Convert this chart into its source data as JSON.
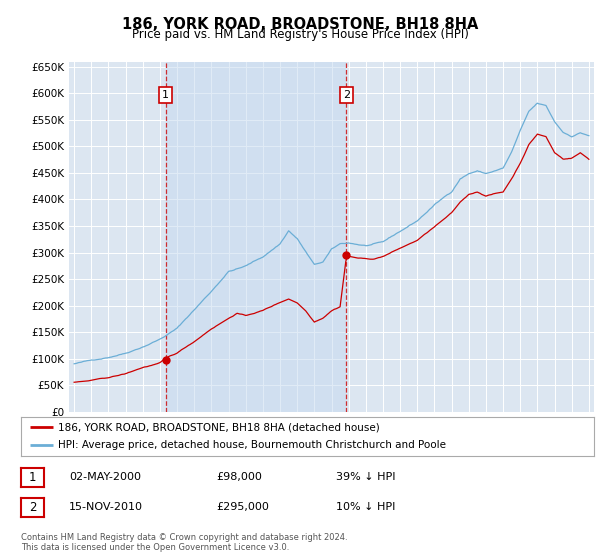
{
  "title": "186, YORK ROAD, BROADSTONE, BH18 8HA",
  "subtitle": "Price paid vs. HM Land Registry's House Price Index (HPI)",
  "ylim": [
    0,
    660000
  ],
  "yticks": [
    0,
    50000,
    100000,
    150000,
    200000,
    250000,
    300000,
    350000,
    400000,
    450000,
    500000,
    550000,
    600000,
    650000
  ],
  "ytick_labels": [
    "£0",
    "£50K",
    "£100K",
    "£150K",
    "£200K",
    "£250K",
    "£300K",
    "£350K",
    "£400K",
    "£450K",
    "£500K",
    "£550K",
    "£600K",
    "£650K"
  ],
  "hpi_color": "#6baed6",
  "price_color": "#cc0000",
  "bg_color": "#dce6f1",
  "grid_color": "#ffffff",
  "sale1_date_x": 2000.33,
  "sale1_price": 98000,
  "sale2_date_x": 2010.87,
  "sale2_price": 295000,
  "legend_entry1": "186, YORK ROAD, BROADSTONE, BH18 8HA (detached house)",
  "legend_entry2": "HPI: Average price, detached house, Bournemouth Christchurch and Poole",
  "footnote1": "Contains HM Land Registry data © Crown copyright and database right 2024.",
  "footnote2": "This data is licensed under the Open Government Licence v3.0.",
  "table_row1": [
    "1",
    "02-MAY-2000",
    "£98,000",
    "39% ↓ HPI"
  ],
  "table_row2": [
    "2",
    "15-NOV-2010",
    "£295,000",
    "10% ↓ HPI"
  ],
  "vline_color": "#cc0000",
  "shade_color": "#dce6f1",
  "xmin": 1994.7,
  "xmax": 2025.3
}
